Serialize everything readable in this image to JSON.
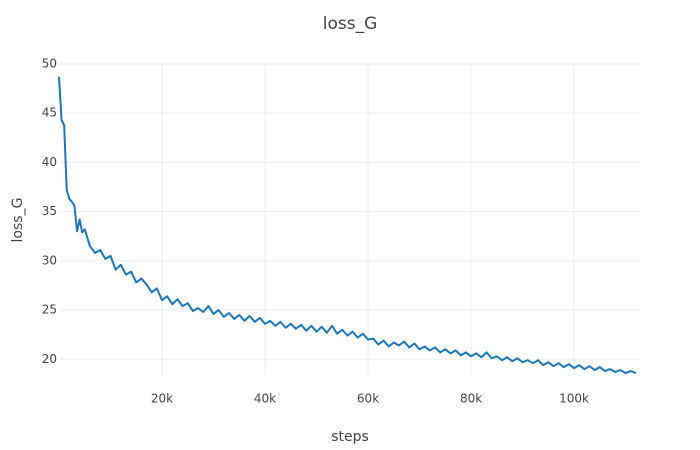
{
  "chart_data": {
    "type": "line",
    "title": "loss_G",
    "x_label": "steps",
    "y_label": "loss_G",
    "x": [
      0,
      500,
      1000,
      1500,
      2000,
      2500,
      3000,
      3500,
      4000,
      4500,
      5000,
      6000,
      7000,
      8000,
      9000,
      10000,
      11000,
      12000,
      13000,
      14000,
      15000,
      16000,
      17000,
      18000,
      19000,
      20000,
      21000,
      22000,
      23000,
      24000,
      25000,
      26000,
      27000,
      28000,
      29000,
      30000,
      31000,
      32000,
      33000,
      34000,
      35000,
      36000,
      37000,
      38000,
      39000,
      40000,
      41000,
      42000,
      43000,
      44000,
      45000,
      46000,
      47000,
      48000,
      49000,
      50000,
      51000,
      52000,
      53000,
      54000,
      55000,
      56000,
      57000,
      58000,
      59000,
      60000,
      61000,
      62000,
      63000,
      64000,
      65000,
      66000,
      67000,
      68000,
      69000,
      70000,
      71000,
      72000,
      73000,
      74000,
      75000,
      76000,
      77000,
      78000,
      79000,
      80000,
      81000,
      82000,
      83000,
      84000,
      85000,
      86000,
      87000,
      88000,
      89000,
      90000,
      91000,
      92000,
      93000,
      94000,
      95000,
      96000,
      97000,
      98000,
      99000,
      100000,
      101000,
      102000,
      103000,
      104000,
      105000,
      106000,
      107000,
      108000,
      109000,
      110000,
      111000,
      112000
    ],
    "series": [
      {
        "name": "loss_G",
        "color": "#1f77b4",
        "values": [
          48.7,
          44.3,
          43.8,
          37.2,
          36.3,
          36.0,
          35.6,
          33.0,
          34.2,
          32.9,
          33.2,
          31.5,
          30.8,
          31.1,
          30.2,
          30.5,
          29.1,
          29.6,
          28.6,
          28.9,
          27.8,
          28.2,
          27.6,
          26.8,
          27.2,
          26.0,
          26.4,
          25.6,
          26.1,
          25.4,
          25.7,
          24.9,
          25.2,
          24.8,
          25.4,
          24.6,
          25.0,
          24.3,
          24.7,
          24.1,
          24.5,
          23.9,
          24.4,
          23.8,
          24.2,
          23.6,
          23.9,
          23.4,
          23.8,
          23.2,
          23.6,
          23.1,
          23.5,
          22.9,
          23.4,
          22.8,
          23.3,
          22.7,
          23.4,
          22.6,
          23.0,
          22.4,
          22.8,
          22.2,
          22.6,
          22.0,
          22.1,
          21.5,
          21.9,
          21.3,
          21.7,
          21.4,
          21.8,
          21.2,
          21.6,
          21.0,
          21.3,
          20.9,
          21.2,
          20.7,
          21.0,
          20.6,
          20.9,
          20.4,
          20.7,
          20.3,
          20.6,
          20.2,
          20.7,
          20.1,
          20.3,
          19.9,
          20.2,
          19.8,
          20.1,
          19.7,
          19.9,
          19.6,
          19.9,
          19.4,
          19.7,
          19.3,
          19.6,
          19.2,
          19.5,
          19.1,
          19.4,
          19.0,
          19.3,
          18.9,
          19.2,
          18.8,
          19.0,
          18.7,
          18.9,
          18.6,
          18.8,
          18.6
        ]
      }
    ],
    "xlim": [
      0,
      112800
    ],
    "ylim": [
      18.4,
      50
    ],
    "xticks": [
      {
        "value": 20000,
        "label": "20k"
      },
      {
        "value": 40000,
        "label": "40k"
      },
      {
        "value": 60000,
        "label": "60k"
      },
      {
        "value": 80000,
        "label": "80k"
      },
      {
        "value": 100000,
        "label": "100k"
      }
    ],
    "yticks": [
      20,
      25,
      30,
      35,
      40,
      45,
      50
    ],
    "grid": true
  }
}
